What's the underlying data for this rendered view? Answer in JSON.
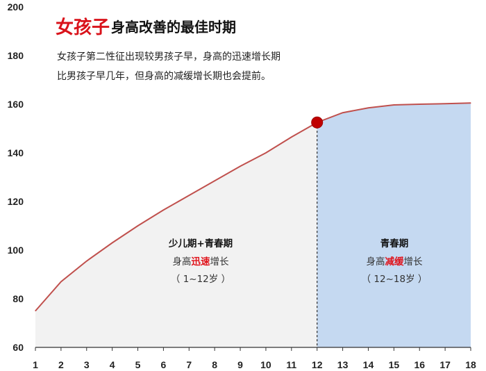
{
  "title": {
    "strong": "女孩子",
    "rest": "身高改善的最佳时期"
  },
  "subtitle": {
    "line1": "女孩子第二性征出现较男孩子早，身高的迅速增长期",
    "line2": "比男孩子早几年，但身高的减缓增长期也会提前。"
  },
  "regions": {
    "early": {
      "title": "少儿期+青春期",
      "desc_prefix": "身高",
      "desc_highlight": "迅速",
      "desc_suffix": "增长",
      "range": "（ 1~12岁 ）"
    },
    "late": {
      "title": "青春期",
      "desc_prefix": "身高",
      "desc_highlight": "减缓",
      "desc_suffix": "增长",
      "range": "（ 12~18岁 ）"
    }
  },
  "colors": {
    "line": "#c0504d",
    "marker": "#c00000",
    "early_fill": "#f2f2f2",
    "late_fill": "#c5d9f1",
    "axis": "#333333",
    "title_accent": "#d9121a"
  },
  "chart_data": {
    "type": "area",
    "x": [
      1,
      2,
      3,
      4,
      5,
      6,
      7,
      8,
      9,
      10,
      11,
      12,
      13,
      14,
      15,
      16,
      17,
      18
    ],
    "values": [
      75,
      87,
      95.5,
      103,
      110,
      116.5,
      122.5,
      128.5,
      134.5,
      140,
      146.5,
      152.5,
      156.5,
      158.5,
      159.7,
      160,
      160.2,
      160.5
    ],
    "highlight_point": {
      "x": 12,
      "y": 152.5
    },
    "split_x": 12,
    "xlim": [
      1,
      18
    ],
    "ylim": [
      60,
      200
    ],
    "y_ticks": [
      60,
      80,
      100,
      120,
      140,
      160,
      180,
      200
    ],
    "x_ticks": [
      1,
      2,
      3,
      4,
      5,
      6,
      7,
      8,
      9,
      10,
      11,
      12,
      13,
      14,
      15,
      16,
      17,
      18
    ],
    "grid": false
  }
}
